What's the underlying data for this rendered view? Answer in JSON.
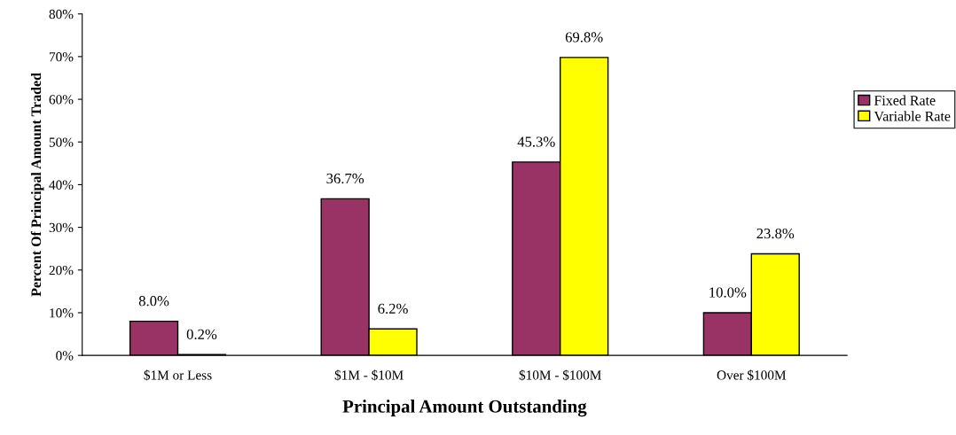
{
  "chart_data": {
    "type": "bar",
    "xlabel": "Principal Amount Outstanding",
    "ylabel": "Percent Of Principal Amount Traded",
    "categories": [
      "$1M or Less",
      "$1M - $10M",
      "$10M - $100M",
      "Over $100M"
    ],
    "series": [
      {
        "name": "Fixed Rate",
        "color": "#993366",
        "values": [
          8.0,
          36.7,
          45.3,
          10.0
        ],
        "value_labels": [
          "8.0%",
          "36.7%",
          "45.3%",
          "10.0%"
        ]
      },
      {
        "name": "Variable Rate",
        "color": "#ffff00",
        "values": [
          0.2,
          6.2,
          69.8,
          23.8
        ],
        "value_labels": [
          "0.2%",
          "6.2%",
          "69.8%",
          "23.8%"
        ]
      }
    ],
    "ylim": [
      0,
      80
    ],
    "yticks": [
      {
        "value": 0,
        "label": "0%"
      },
      {
        "value": 10,
        "label": "10%"
      },
      {
        "value": 20,
        "label": "20%"
      },
      {
        "value": 30,
        "label": "30%"
      },
      {
        "value": 40,
        "label": "40%"
      },
      {
        "value": 50,
        "label": "50%"
      },
      {
        "value": 60,
        "label": "60%"
      },
      {
        "value": 70,
        "label": "70%"
      },
      {
        "value": 80,
        "label": "80%"
      }
    ],
    "grid": false,
    "legend": "right"
  }
}
